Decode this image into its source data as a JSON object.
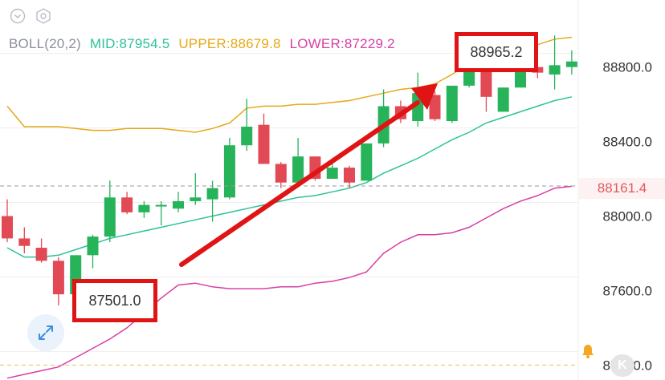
{
  "indicator": {
    "name": "BOLL(20,2)",
    "mid_label": "MID:87954.5",
    "upper_label": "UPPER:88679.8",
    "lower_label": "LOWER:87229.2",
    "name_color": "#8a8f99",
    "mid_color": "#2bc29a",
    "upper_color": "#e6a817",
    "lower_color": "#d63fa6"
  },
  "annotations": {
    "high_label": "88965.2",
    "low_label": "87501.0",
    "box_color": "#e01414",
    "arrow_color": "#e01414"
  },
  "current_price": {
    "label": "88161.4",
    "value": 88161.4,
    "color": "#e05a60"
  },
  "alert_price": 87200.0,
  "icons": [
    "chevron-down-icon",
    "settings-hexagon-icon",
    "expand-icon",
    "bell-icon",
    "k-logo"
  ],
  "colors": {
    "up": "#26b35a",
    "down": "#e14954",
    "grid": "#eeeeee",
    "axis_text": "#333333"
  },
  "chart_data": {
    "type": "candlestick",
    "y_ticks": [
      "88800.0",
      "88400.0",
      "88000.0",
      "87600.0",
      "87200.0"
    ],
    "y_tick_values": [
      88800.0,
      88400.0,
      88000.0,
      87600.0,
      87200.0
    ],
    "ylim": [
      87120,
      89160
    ],
    "candles": [
      {
        "o": 88000,
        "h": 88090,
        "l": 87860,
        "c": 87880
      },
      {
        "o": 87880,
        "h": 87940,
        "l": 87800,
        "c": 87840
      },
      {
        "o": 87830,
        "h": 87880,
        "l": 87750,
        "c": 87760
      },
      {
        "o": 87760,
        "h": 87780,
        "l": 87520,
        "c": 87580
      },
      {
        "o": 87580,
        "h": 87790,
        "l": 87540,
        "c": 87790
      },
      {
        "o": 87790,
        "h": 87900,
        "l": 87720,
        "c": 87890
      },
      {
        "o": 87890,
        "h": 88190,
        "l": 87860,
        "c": 88100
      },
      {
        "o": 88100,
        "h": 88130,
        "l": 88010,
        "c": 88020
      },
      {
        "o": 88020,
        "h": 88080,
        "l": 87990,
        "c": 88060
      },
      {
        "o": 88060,
        "h": 88080,
        "l": 87950,
        "c": 88060
      },
      {
        "o": 88040,
        "h": 88130,
        "l": 88020,
        "c": 88080
      },
      {
        "o": 88080,
        "h": 88230,
        "l": 88060,
        "c": 88100
      },
      {
        "o": 88090,
        "h": 88190,
        "l": 87970,
        "c": 88150
      },
      {
        "o": 88100,
        "h": 88420,
        "l": 88090,
        "c": 88380
      },
      {
        "o": 88380,
        "h": 88630,
        "l": 88350,
        "c": 88480
      },
      {
        "o": 88490,
        "h": 88550,
        "l": 88280,
        "c": 88280
      },
      {
        "o": 88280,
        "h": 88290,
        "l": 88150,
        "c": 88180
      },
      {
        "o": 88180,
        "h": 88420,
        "l": 88160,
        "c": 88320
      },
      {
        "o": 88320,
        "h": 88320,
        "l": 88190,
        "c": 88200
      },
      {
        "o": 88200,
        "h": 88310,
        "l": 88200,
        "c": 88260
      },
      {
        "o": 88260,
        "h": 88270,
        "l": 88150,
        "c": 88180
      },
      {
        "o": 88190,
        "h": 88390,
        "l": 88190,
        "c": 88390
      },
      {
        "o": 88390,
        "h": 88680,
        "l": 88370,
        "c": 88590
      },
      {
        "o": 88590,
        "h": 88620,
        "l": 88500,
        "c": 88520
      },
      {
        "o": 88510,
        "h": 88770,
        "l": 88480,
        "c": 88660
      },
      {
        "o": 88650,
        "h": 88670,
        "l": 88510,
        "c": 88520
      },
      {
        "o": 88510,
        "h": 88700,
        "l": 88500,
        "c": 88700
      },
      {
        "o": 88700,
        "h": 88880,
        "l": 88690,
        "c": 88860
      },
      {
        "o": 88870,
        "h": 88880,
        "l": 88560,
        "c": 88640
      },
      {
        "o": 88560,
        "h": 88690,
        "l": 88560,
        "c": 88690
      },
      {
        "o": 88690,
        "h": 88800,
        "l": 88690,
        "c": 88780
      },
      {
        "o": 88800,
        "h": 88810,
        "l": 88740,
        "c": 88770
      },
      {
        "o": 88760,
        "h": 88970,
        "l": 88680,
        "c": 88810
      },
      {
        "o": 88800,
        "h": 88890,
        "l": 88760,
        "c": 88830
      }
    ],
    "upper_band": [
      88590,
      88480,
      88480,
      88480,
      88470,
      88460,
      88460,
      88470,
      88470,
      88470,
      88460,
      88450,
      88470,
      88500,
      88580,
      88590,
      88590,
      88600,
      88600,
      88610,
      88620,
      88640,
      88660,
      88680,
      88690,
      88710,
      88760,
      88820,
      88880,
      88880,
      88900,
      88920,
      88950,
      88960
    ],
    "mid_band": [
      87830,
      87780,
      87780,
      87790,
      87820,
      87850,
      87880,
      87900,
      87920,
      87940,
      87960,
      87980,
      88000,
      88020,
      88040,
      88060,
      88080,
      88100,
      88110,
      88130,
      88150,
      88180,
      88230,
      88270,
      88310,
      88360,
      88410,
      88450,
      88500,
      88530,
      88560,
      88590,
      88620,
      88640
    ],
    "lower_band": [
      87130,
      87150,
      87170,
      87190,
      87240,
      87290,
      87340,
      87400,
      87480,
      87560,
      87630,
      87640,
      87620,
      87610,
      87610,
      87610,
      87620,
      87620,
      87640,
      87650,
      87670,
      87700,
      87800,
      87860,
      87900,
      87900,
      87910,
      87940,
      87990,
      88040,
      88080,
      88110,
      88150,
      88160
    ]
  }
}
